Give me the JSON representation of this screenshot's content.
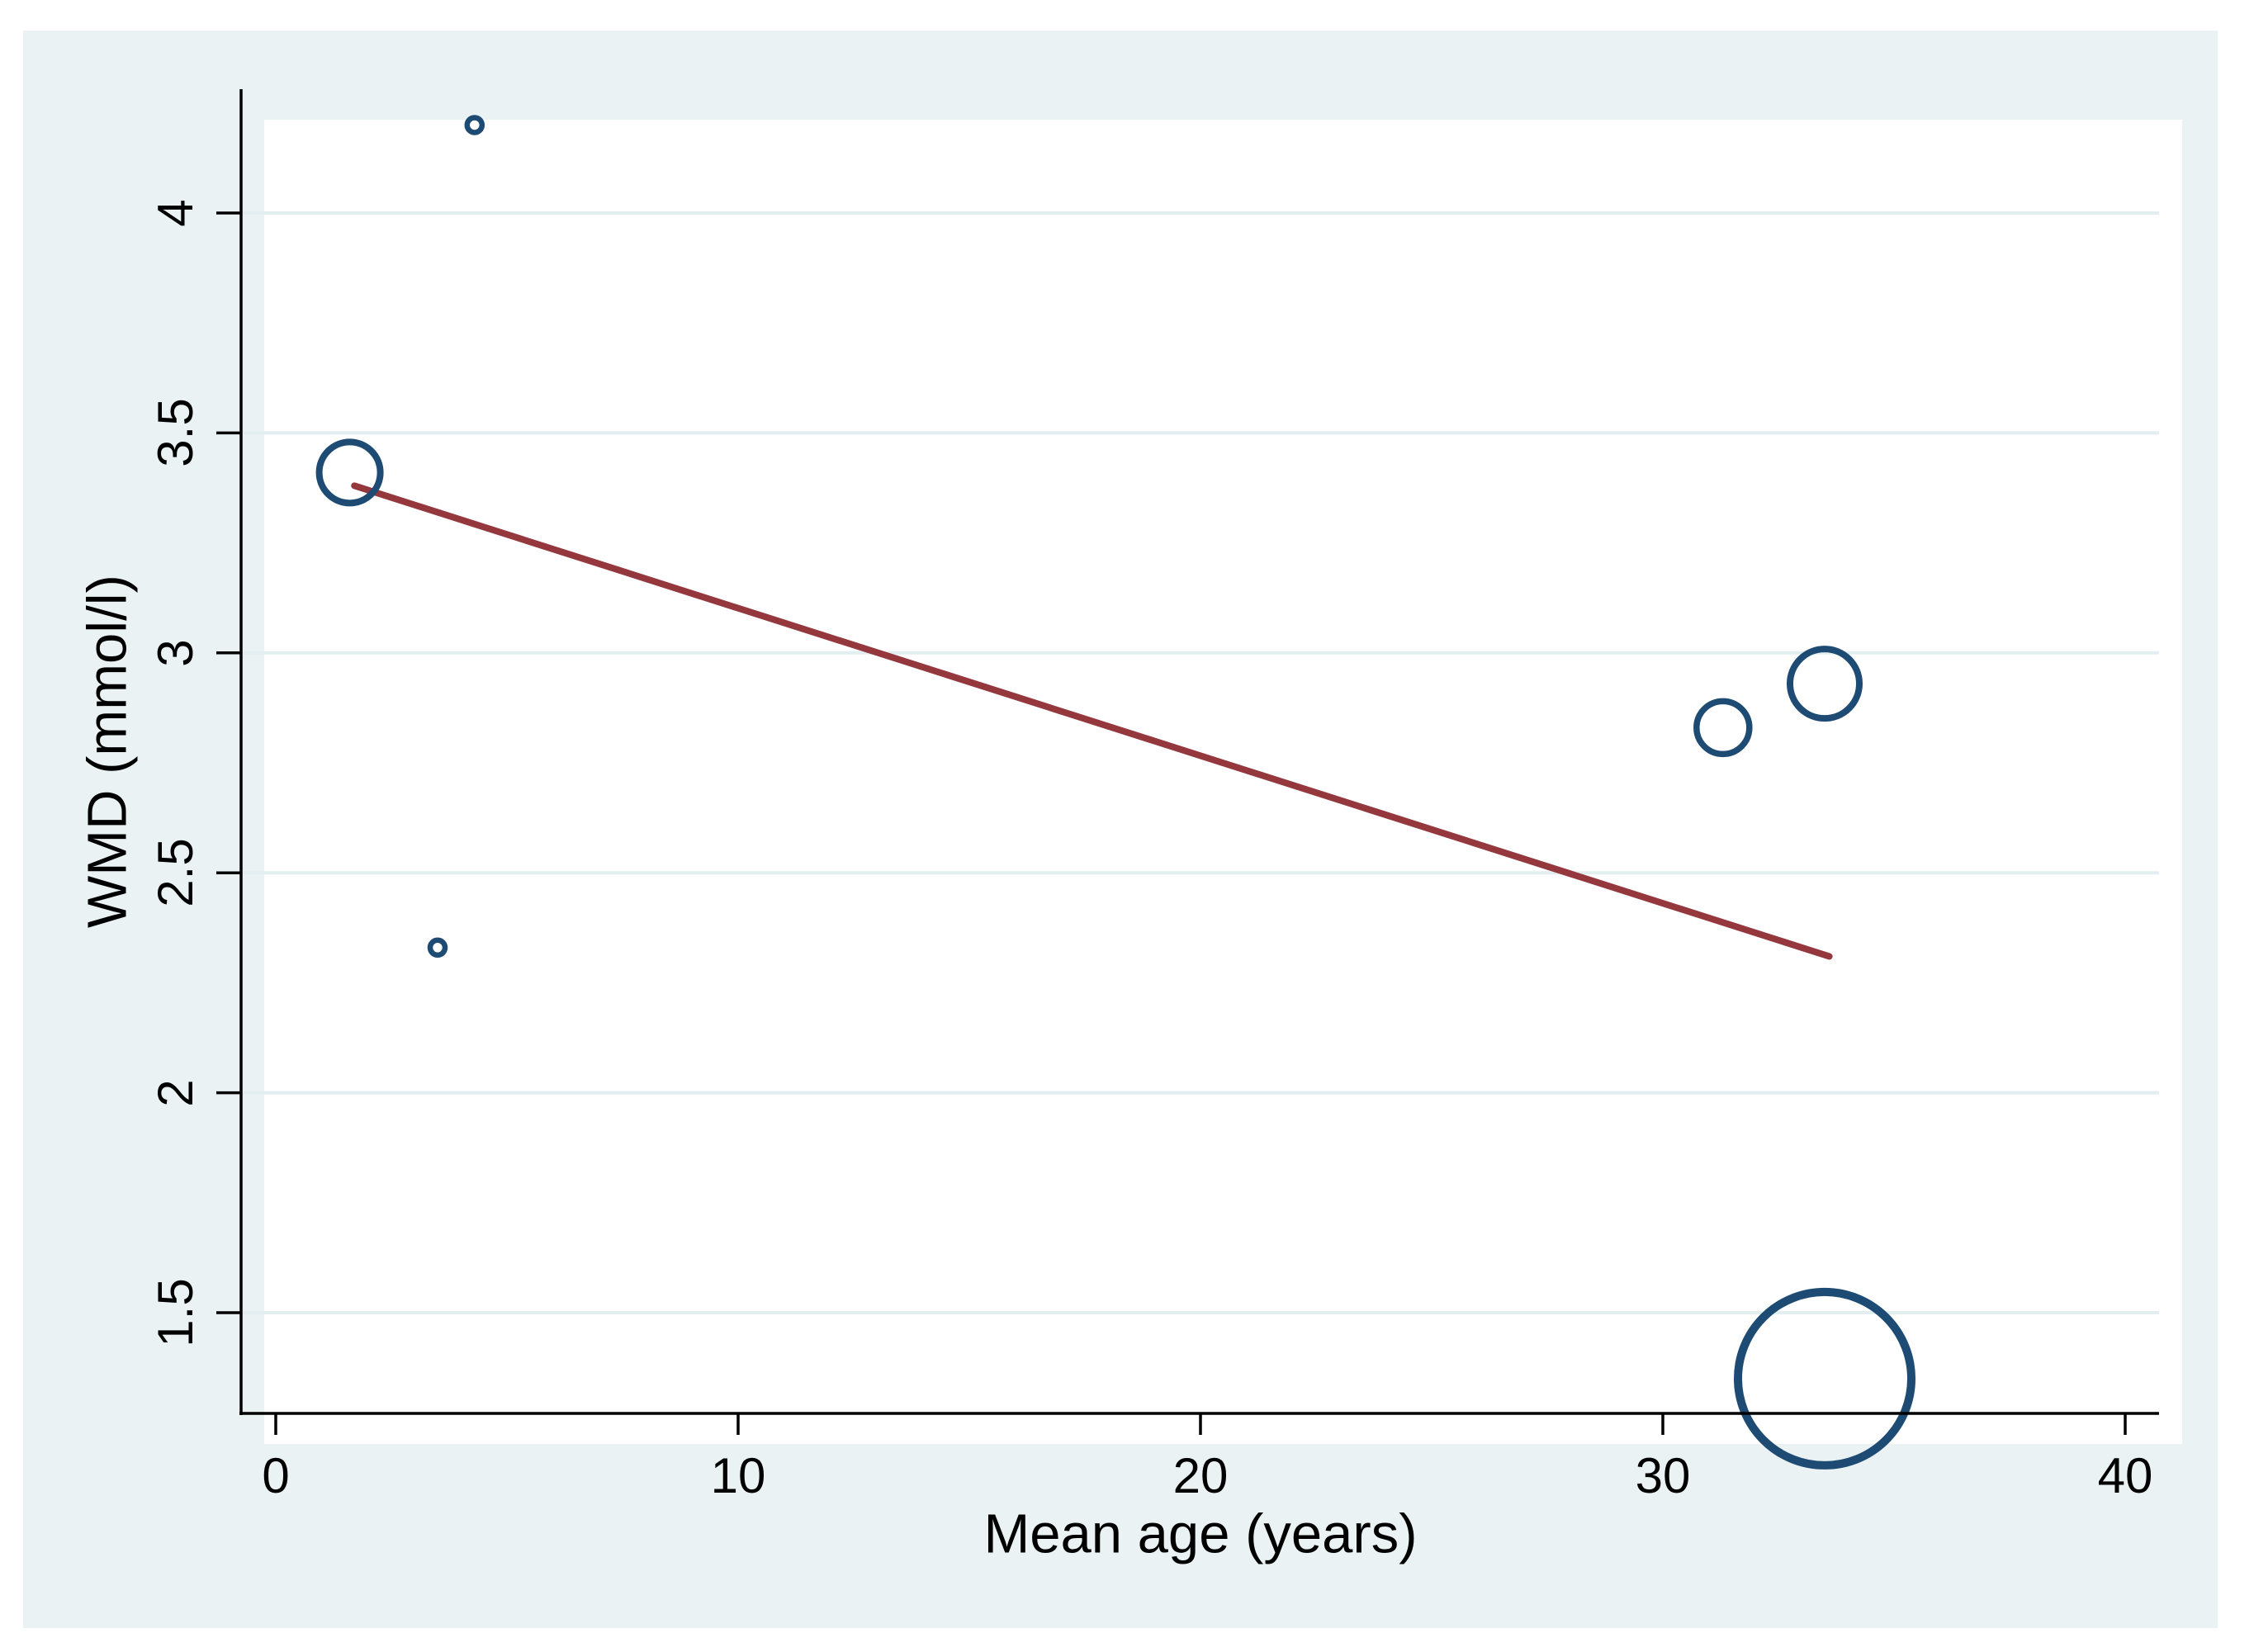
{
  "chart_data": {
    "type": "scatter",
    "subtype": "bubble-with-fit-line",
    "title": "",
    "xlabel": "Mean age (years)",
    "ylabel": "WMD (mmol/l)",
    "xlim": [
      -0.75,
      40.7
    ],
    "ylim": [
      1.27,
      4.28
    ],
    "x_ticks": [
      0,
      10,
      20,
      30,
      40
    ],
    "x_tick_labels": [
      "0",
      "10",
      "20",
      "30",
      "40"
    ],
    "y_ticks": [
      1.5,
      2,
      2.5,
      3,
      3.5,
      4
    ],
    "y_tick_labels": [
      "1.5",
      "2",
      "2.5",
      "3",
      "3.5",
      "4"
    ],
    "grid": "horizontal-only",
    "legend": "none",
    "colors": {
      "bubble_stroke": "#1E4B73",
      "fit_line": "#94383E",
      "canvas_bg": "#EAF2F3",
      "plot_bg": "#FFFFFF",
      "gridline": "#E3EEF0",
      "axis": "#000000"
    },
    "series": [
      {
        "name": "study-bubbles",
        "type": "bubble",
        "points": [
          {
            "x": 4.3,
            "y": 4.2,
            "r": 9,
            "stroke": 6.5
          },
          {
            "x": 1.6,
            "y": 3.41,
            "r": 37,
            "stroke": 8
          },
          {
            "x": 3.5,
            "y": 2.33,
            "r": 9,
            "stroke": 6.5
          },
          {
            "x": 31.3,
            "y": 2.83,
            "r": 32,
            "stroke": 7.5
          },
          {
            "x": 33.5,
            "y": 2.93,
            "r": 42,
            "stroke": 8
          },
          {
            "x": 33.5,
            "y": 1.35,
            "r": 105,
            "stroke": 10
          }
        ]
      },
      {
        "name": "meta-regression-line",
        "type": "line",
        "from": {
          "x": 1.7,
          "y": 3.38
        },
        "to": {
          "x": 33.6,
          "y": 2.31
        }
      }
    ]
  }
}
